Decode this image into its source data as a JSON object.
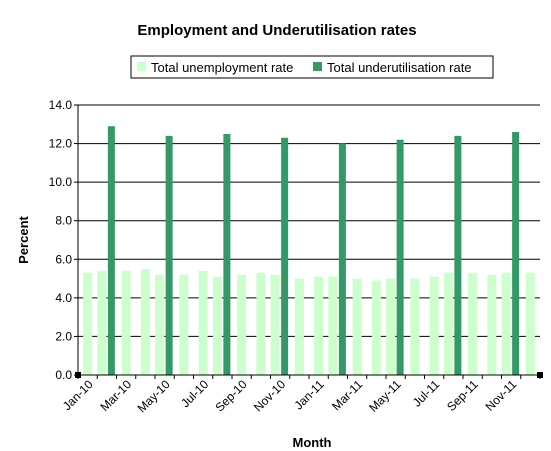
{
  "chart_data": {
    "type": "bar",
    "title": "Employment and Underutilisation rates",
    "xlabel": "Month",
    "ylabel": "Percent",
    "ylim": [
      0,
      14
    ],
    "y_ticks": [
      "0.0",
      "2.0",
      "4.0",
      "6.0",
      "8.0",
      "10.0",
      "12.0",
      "14.0"
    ],
    "grid": "horizontal",
    "legend_position": "top-right",
    "categories": [
      "Jan-10",
      "Feb-10",
      "Mar-10",
      "Apr-10",
      "May-10",
      "Jun-10",
      "Jul-10",
      "Aug-10",
      "Sep-10",
      "Oct-10",
      "Nov-10",
      "Dec-10",
      "Jan-11",
      "Feb-11",
      "Mar-11",
      "Apr-11",
      "May-11",
      "Jun-11",
      "Jul-11",
      "Aug-11",
      "Sep-11",
      "Oct-11",
      "Nov-11",
      "Dec-11"
    ],
    "x_tick_labels": [
      "Jan-10",
      "Mar-10",
      "May-10",
      "Jul-10",
      "Sep-10",
      "Nov-10",
      "Jan-11",
      "Mar-11",
      "May-11",
      "Jul-11",
      "Sep-11",
      "Nov-11"
    ],
    "series": [
      {
        "name": "Total unemployment rate",
        "color": "#ccffcc",
        "values": [
          5.3,
          5.4,
          5.4,
          5.5,
          5.2,
          5.2,
          5.4,
          5.1,
          5.2,
          5.3,
          5.2,
          5.0,
          5.1,
          5.1,
          5.0,
          4.9,
          5.0,
          5.0,
          5.1,
          5.3,
          5.3,
          5.2,
          5.3,
          5.3
        ]
      },
      {
        "name": "Total underutilisation rate",
        "color": "#339966",
        "values": [
          null,
          12.9,
          null,
          null,
          12.4,
          null,
          null,
          12.5,
          null,
          null,
          12.3,
          null,
          null,
          12.0,
          null,
          null,
          12.2,
          null,
          null,
          12.4,
          null,
          null,
          12.6,
          null
        ]
      }
    ]
  }
}
